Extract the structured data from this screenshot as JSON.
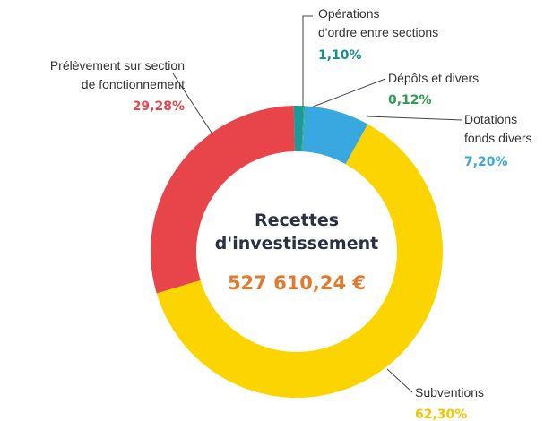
{
  "chart_data": {
    "type": "pie",
    "donut": true,
    "title": "Recettes\nd'investissement",
    "center_total": "527 610,24 €",
    "categories": [
      "Opérations\nd'ordre entre sections",
      "Dépôts et divers",
      "Dotations\nfonds divers",
      "Subventions",
      "Prélèvement sur section\nde fonctionnement"
    ],
    "values": [
      1.1,
      0.12,
      7.2,
      62.3,
      29.28
    ],
    "value_labels": [
      "1,10%",
      "0,12%",
      "7,20%",
      "62,30%",
      "29,28%"
    ],
    "colors": [
      "#1a9a9a",
      "#3aa55a",
      "#3aa8e0",
      "#fcd400",
      "#e8454b"
    ],
    "label_colors": [
      "#178f8f",
      "#2f9e4f",
      "#3aa8e0",
      "#f2c500",
      "#e8454b"
    ]
  }
}
